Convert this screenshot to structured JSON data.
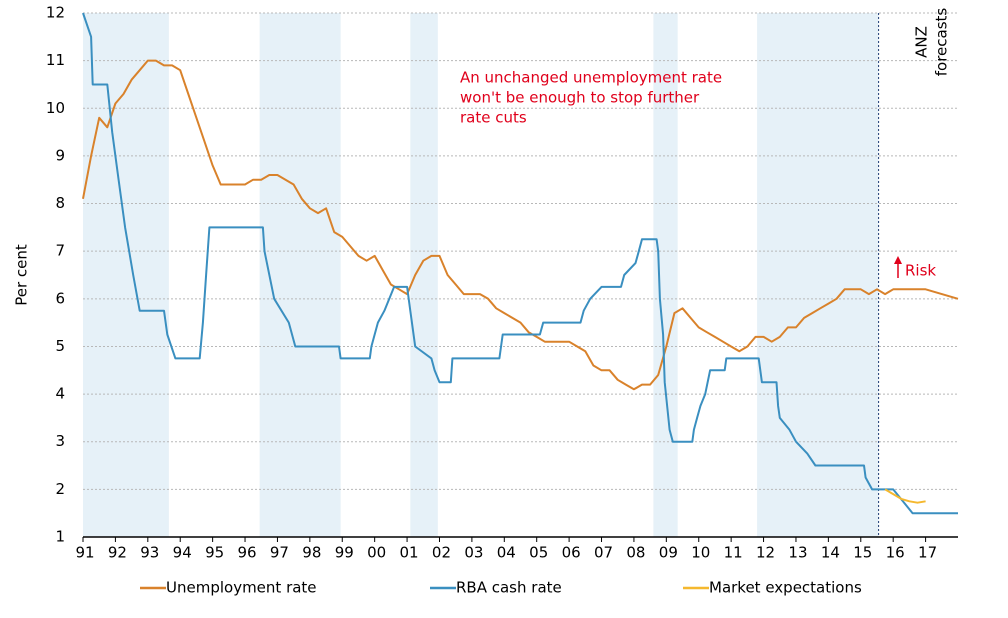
{
  "chart_data": {
    "type": "line",
    "y_label": "Per cent",
    "xlim": [
      1991,
      2018
    ],
    "ylim": [
      1,
      12
    ],
    "yticks": [
      1,
      2,
      3,
      4,
      5,
      6,
      7,
      8,
      9,
      10,
      11,
      12
    ],
    "xticks": [
      {
        "value": 1991,
        "label": "91"
      },
      {
        "value": 1992,
        "label": "92"
      },
      {
        "value": 1993,
        "label": "93"
      },
      {
        "value": 1994,
        "label": "94"
      },
      {
        "value": 1995,
        "label": "95"
      },
      {
        "value": 1996,
        "label": "96"
      },
      {
        "value": 1997,
        "label": "97"
      },
      {
        "value": 1998,
        "label": "98"
      },
      {
        "value": 1999,
        "label": "99"
      },
      {
        "value": 2000,
        "label": "00"
      },
      {
        "value": 2001,
        "label": "01"
      },
      {
        "value": 2002,
        "label": "02"
      },
      {
        "value": 2003,
        "label": "03"
      },
      {
        "value": 2004,
        "label": "04"
      },
      {
        "value": 2005,
        "label": "05"
      },
      {
        "value": 2006,
        "label": "06"
      },
      {
        "value": 2007,
        "label": "07"
      },
      {
        "value": 2008,
        "label": "08"
      },
      {
        "value": 2009,
        "label": "09"
      },
      {
        "value": 2010,
        "label": "10"
      },
      {
        "value": 2011,
        "label": "11"
      },
      {
        "value": 2012,
        "label": "12"
      },
      {
        "value": 2013,
        "label": "13"
      },
      {
        "value": 2014,
        "label": "14"
      },
      {
        "value": 2015,
        "label": "15"
      },
      {
        "value": 2016,
        "label": "16"
      },
      {
        "value": 2017,
        "label": "17"
      }
    ],
    "grid": true,
    "shaded_periods": [
      [
        1991.0,
        1993.65
      ],
      [
        1996.45,
        1998.95
      ],
      [
        2001.1,
        2001.95
      ],
      [
        2008.6,
        2009.35
      ],
      [
        2011.8,
        2015.55
      ]
    ],
    "shade_color": "#e6f1f8",
    "forecast_start": 2015.55,
    "annotations": {
      "note": [
        "An unchanged unemployment rate",
        "won't be enough to stop further",
        "rate cuts"
      ],
      "forecast": [
        "ANZ",
        "forecasts"
      ],
      "risk": "Risk"
    },
    "series": [
      {
        "name": "Unemployment rate",
        "color": "#d9822b",
        "x": [
          1991.0,
          1991.25,
          1991.5,
          1991.75,
          1992.0,
          1992.25,
          1992.5,
          1992.75,
          1993.0,
          1993.25,
          1993.5,
          1993.75,
          1994.0,
          1994.25,
          1994.5,
          1994.75,
          1995.0,
          1995.25,
          1995.5,
          1995.75,
          1996.0,
          1996.25,
          1996.5,
          1996.75,
          1997.0,
          1997.25,
          1997.5,
          1997.75,
          1998.0,
          1998.25,
          1998.5,
          1998.75,
          1999.0,
          1999.25,
          1999.5,
          1999.75,
          2000.0,
          2000.25,
          2000.5,
          2000.75,
          2001.0,
          2001.25,
          2001.5,
          2001.75,
          2002.0,
          2002.25,
          2002.5,
          2002.75,
          2003.0,
          2003.25,
          2003.5,
          2003.75,
          2004.0,
          2004.25,
          2004.5,
          2004.75,
          2005.0,
          2005.25,
          2005.5,
          2005.75,
          2006.0,
          2006.25,
          2006.5,
          2006.75,
          2007.0,
          2007.25,
          2007.5,
          2007.75,
          2008.0,
          2008.25,
          2008.5,
          2008.75,
          2009.0,
          2009.25,
          2009.5,
          2009.75,
          2010.0,
          2010.25,
          2010.5,
          2010.75,
          2011.0,
          2011.25,
          2011.5,
          2011.75,
          2012.0,
          2012.25,
          2012.5,
          2012.75,
          2013.0,
          2013.25,
          2013.5,
          2013.75,
          2014.0,
          2014.25,
          2014.5,
          2014.75,
          2015.0,
          2015.25,
          2015.5,
          2015.75,
          2016.0,
          2016.5,
          2017.0,
          2017.5,
          2018.0
        ],
        "values": [
          8.1,
          9.0,
          9.8,
          9.6,
          10.1,
          10.3,
          10.6,
          10.8,
          11.0,
          11.0,
          10.9,
          10.9,
          10.8,
          10.3,
          9.8,
          9.3,
          8.8,
          8.4,
          8.4,
          8.4,
          8.4,
          8.5,
          8.5,
          8.6,
          8.6,
          8.5,
          8.4,
          8.1,
          7.9,
          7.8,
          7.9,
          7.4,
          7.3,
          7.1,
          6.9,
          6.8,
          6.9,
          6.6,
          6.3,
          6.2,
          6.1,
          6.5,
          6.8,
          6.9,
          6.9,
          6.5,
          6.3,
          6.1,
          6.1,
          6.1,
          6.0,
          5.8,
          5.7,
          5.6,
          5.5,
          5.3,
          5.2,
          5.1,
          5.1,
          5.1,
          5.1,
          5.0,
          4.9,
          4.6,
          4.5,
          4.5,
          4.3,
          4.2,
          4.1,
          4.2,
          4.2,
          4.4,
          5.0,
          5.7,
          5.8,
          5.6,
          5.4,
          5.3,
          5.2,
          5.1,
          5.0,
          4.9,
          5.0,
          5.2,
          5.2,
          5.1,
          5.2,
          5.4,
          5.4,
          5.6,
          5.7,
          5.8,
          5.9,
          6.0,
          6.2,
          6.2,
          6.2,
          6.1,
          6.2,
          6.1,
          6.2,
          6.2,
          6.2,
          6.1,
          6.0
        ]
      },
      {
        "name": "RBA cash rate",
        "color": "#3a8fc0",
        "x": [
          1991.0,
          1991.25,
          1991.3,
          1991.75,
          1991.9,
          1992.1,
          1992.3,
          1992.55,
          1992.75,
          1993.5,
          1993.6,
          1993.85,
          1994.6,
          1994.7,
          1994.8,
          1994.9,
          1996.55,
          1996.6,
          1996.9,
          1997.35,
          1997.55,
          1998.9,
          1998.95,
          1999.85,
          1999.9,
          2000.1,
          2000.3,
          2000.6,
          2001.0,
          2001.1,
          2001.25,
          2001.75,
          2001.85,
          2002.0,
          2002.35,
          2002.4,
          2003.85,
          2003.95,
          2005.1,
          2005.2,
          2006.35,
          2006.45,
          2006.65,
          2007.0,
          2007.6,
          2007.7,
          2008.05,
          2008.15,
          2008.25,
          2008.7,
          2008.75,
          2008.8,
          2008.9,
          2008.95,
          2009.1,
          2009.2,
          2009.8,
          2009.85,
          2009.95,
          2010.05,
          2010.2,
          2010.35,
          2010.8,
          2010.85,
          2011.85,
          2011.9,
          2011.95,
          2012.4,
          2012.45,
          2012.5,
          2012.8,
          2013.0,
          2013.35,
          2013.6,
          2015.1,
          2015.15,
          2015.35,
          2016.0,
          2016.3,
          2016.6,
          2018.0
        ],
        "values": [
          12,
          11.5,
          10.5,
          10.5,
          9.5,
          8.5,
          7.5,
          6.5,
          5.75,
          5.75,
          5.25,
          4.75,
          4.75,
          5.5,
          6.5,
          7.5,
          7.5,
          7.0,
          6.0,
          5.5,
          5.0,
          5.0,
          4.75,
          4.75,
          5.0,
          5.5,
          5.75,
          6.25,
          6.25,
          5.75,
          5.0,
          4.75,
          4.5,
          4.25,
          4.25,
          4.75,
          4.75,
          5.25,
          5.25,
          5.5,
          5.5,
          5.75,
          6.0,
          6.25,
          6.25,
          6.5,
          6.75,
          7.0,
          7.25,
          7.25,
          7.0,
          6.0,
          5.25,
          4.25,
          3.25,
          3.0,
          3.0,
          3.25,
          3.5,
          3.75,
          4.0,
          4.5,
          4.5,
          4.75,
          4.75,
          4.5,
          4.25,
          4.25,
          3.75,
          3.5,
          3.25,
          3.0,
          2.75,
          2.5,
          2.5,
          2.25,
          2.0,
          2.0,
          1.75,
          1.5,
          1.5
        ]
      },
      {
        "name": "Market expectations",
        "color": "#f5b82e",
        "x": [
          2015.75,
          2016.0,
          2016.25,
          2016.5,
          2016.75,
          2017.0
        ],
        "values": [
          2.0,
          1.9,
          1.8,
          1.75,
          1.72,
          1.75
        ]
      }
    ]
  }
}
